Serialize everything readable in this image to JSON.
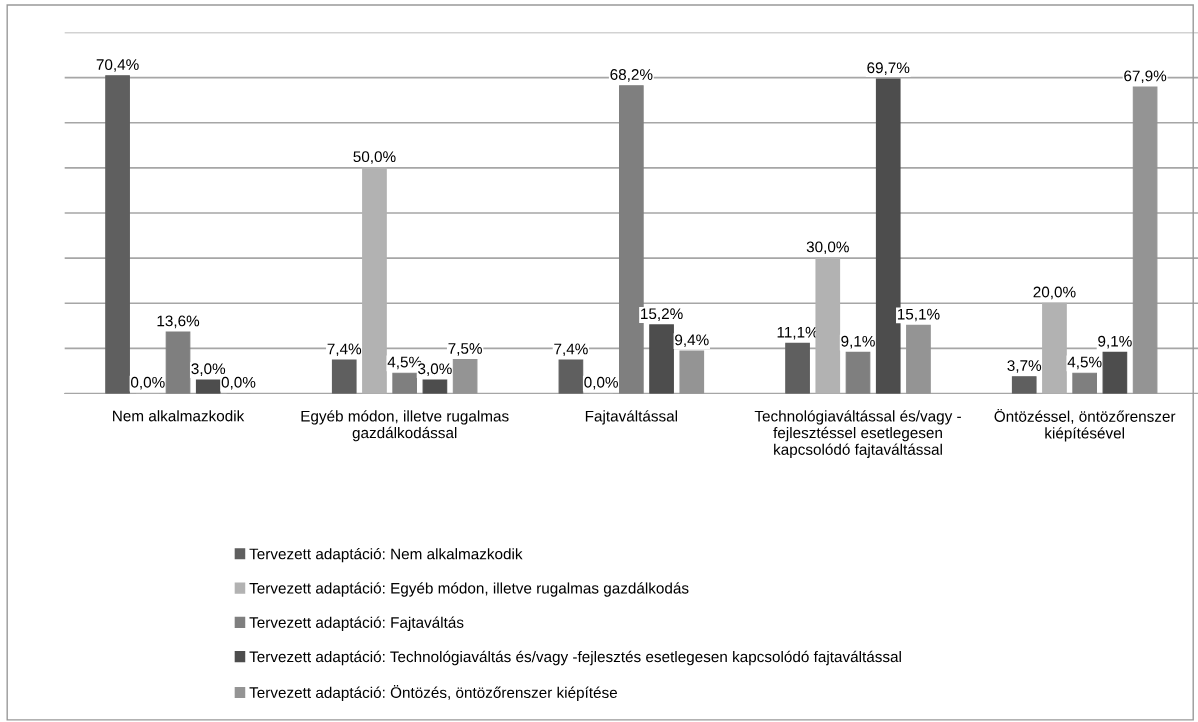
{
  "chart_data": {
    "type": "bar",
    "categories": [
      "Nem alkalmazkodik",
      "Egyéb módon, illetve rugalmas\ngazdálkodással",
      "Fajtaváltással",
      "Technológiaváltással és/vagy -\nfejlesztéssel esetlegesen\nkapcsolódó fajtaváltással",
      "Öntözéssel, öntözőrenszer\nkiépítésével"
    ],
    "series": [
      {
        "name": "Tervezett adaptáció: Nem alkalmazkodik",
        "color": "#5f5f5f",
        "values": [
          70.4,
          7.4,
          7.4,
          11.1,
          3.7
        ],
        "value_labels": [
          "70,4%",
          "7,4%",
          "7,4%",
          "11,1%",
          "3,7%"
        ]
      },
      {
        "name": "Tervezett adaptáció: Egyéb módon, illetve rugalmas gazdálkodás",
        "color": "#b2b2b2",
        "values": [
          0.0,
          50.0,
          0.0,
          30.0,
          20.0
        ],
        "value_labels": [
          "0,0%",
          "50,0%",
          "0,0%",
          "30,0%",
          "20,0%"
        ]
      },
      {
        "name": "Tervezett adaptáció: Fajtaváltás",
        "color": "#7f7f7f",
        "values": [
          13.6,
          4.5,
          68.2,
          9.1,
          4.5
        ],
        "value_labels": [
          "13,6%",
          "4,5%",
          "68,2%",
          "9,1%",
          "4,5%"
        ]
      },
      {
        "name": "Tervezett adaptáció: Technológiaváltás és/vagy -fejlesztés esetlegesen kapcsolódó fajtaváltással",
        "color": "#4d4d4d",
        "values": [
          3.0,
          3.0,
          15.2,
          69.7,
          9.1
        ],
        "value_labels": [
          "3,0%",
          "3,0%",
          "15,2%",
          "69,7%",
          "9,1%"
        ]
      },
      {
        "name": "Tervezett adaptáció: Öntözés, öntözőrenszer kiépítése",
        "color": "#949494",
        "values": [
          0.0,
          7.5,
          9.4,
          15.1,
          67.9
        ],
        "value_labels": [
          "0,0%",
          "7,5%",
          "9,4%",
          "15,1%",
          "67,9%"
        ]
      }
    ],
    "ylim": [
      0,
      80
    ],
    "yticks": [
      {
        "value": 0,
        "label": null
      },
      {
        "value": 10,
        "label": null
      },
      {
        "value": 20,
        "label": null
      },
      {
        "value": 30,
        "label": null
      },
      {
        "value": 40,
        "label": null
      },
      {
        "value": 50,
        "label": null
      },
      {
        "value": 60,
        "label": null
      },
      {
        "value": 70,
        "label": null
      },
      {
        "value": 80,
        "label": null
      }
    ],
    "grid": "y",
    "legend": "bottom",
    "tick_labels": "x"
  }
}
